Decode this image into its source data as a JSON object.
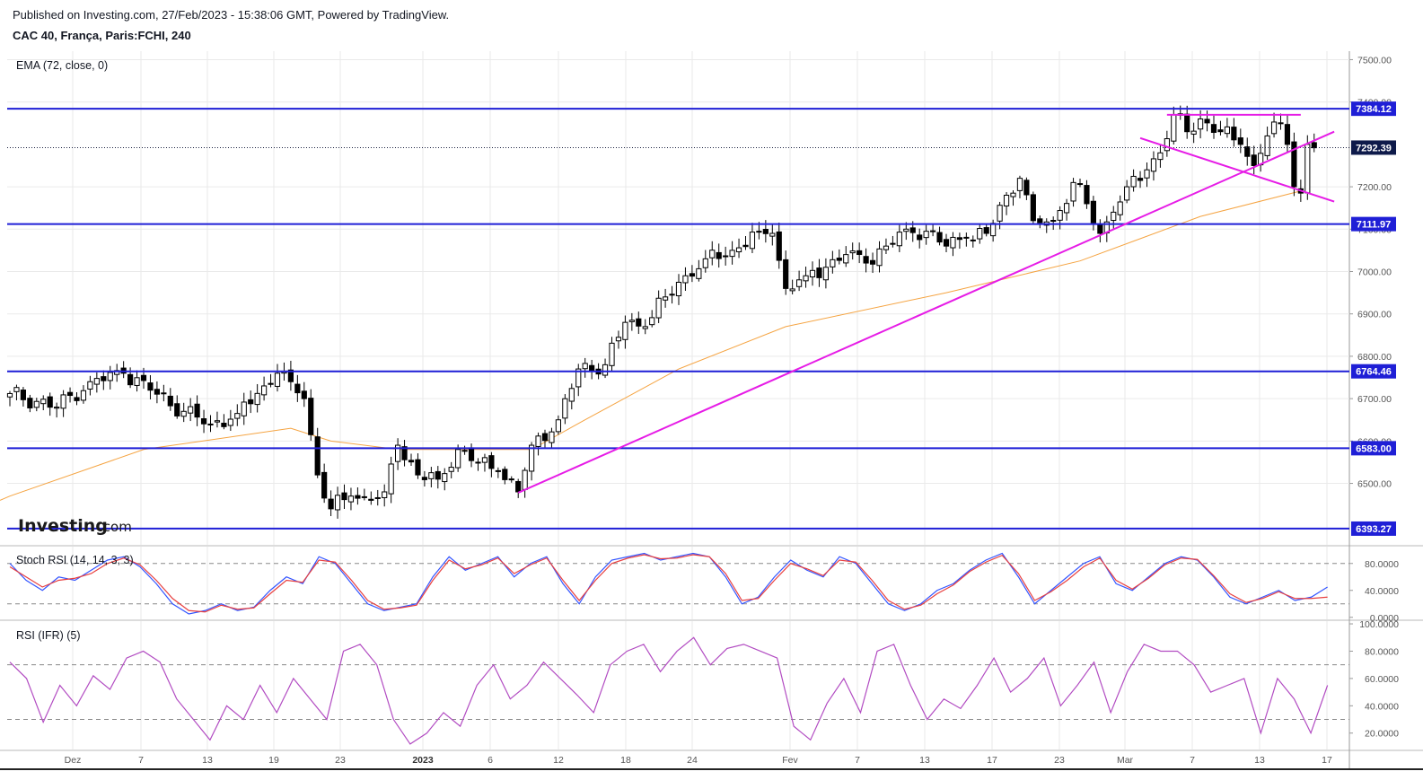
{
  "header": {
    "line1": "Published on Investing.com, 27/Feb/2023 - 15:38:06 GMT, Powered by TradingView.",
    "line2": "CAC 40, França, Paris:FCHI, 240"
  },
  "logo": {
    "bold": "Investing",
    "suffix": ".com"
  },
  "chart_data": [
    {
      "type": "candlestick",
      "title": "CAC 40, França, Paris:FCHI, 240",
      "indicator_label": "EMA (72, close, 0)",
      "ylim": [
        6355,
        7520
      ],
      "y_ticks": [
        {
          "value": 6500,
          "label": "6500.00"
        },
        {
          "value": 6600,
          "label": "6600.00"
        },
        {
          "value": 6700,
          "label": "6700.00"
        },
        {
          "value": 6800,
          "label": "6800.00"
        },
        {
          "value": 6900,
          "label": "6900.00"
        },
        {
          "value": 7000,
          "label": "7000.00"
        },
        {
          "value": 7100,
          "label": "7100.00"
        },
        {
          "value": 7200,
          "label": "7200.00"
        },
        {
          "value": 7400,
          "label": "7400.00"
        },
        {
          "value": 7500,
          "label": "7500.00"
        }
      ],
      "x_ticks": [
        {
          "label": "Dez",
          "bold": false
        },
        {
          "label": "7",
          "bold": false
        },
        {
          "label": "13",
          "bold": false
        },
        {
          "label": "19",
          "bold": false
        },
        {
          "label": "23",
          "bold": false
        },
        {
          "label": "2023",
          "bold": true
        },
        {
          "label": "6",
          "bold": false
        },
        {
          "label": "12",
          "bold": false
        },
        {
          "label": "18",
          "bold": false
        },
        {
          "label": "24",
          "bold": false
        },
        {
          "label": "Fev",
          "bold": false
        },
        {
          "label": "7",
          "bold": false
        },
        {
          "label": "13",
          "bold": false
        },
        {
          "label": "17",
          "bold": false
        },
        {
          "label": "23",
          "bold": false
        },
        {
          "label": "Mar",
          "bold": false
        },
        {
          "label": "7",
          "bold": false
        },
        {
          "label": "13",
          "bold": false
        },
        {
          "label": "17",
          "bold": false
        }
      ],
      "anchor_candles": [
        {
          "i": 0,
          "c": 6712
        },
        {
          "i": 7,
          "c": 6680
        },
        {
          "i": 12,
          "c": 6740
        },
        {
          "i": 17,
          "c": 6760
        },
        {
          "i": 21,
          "c": 6720
        },
        {
          "i": 26,
          "c": 6670
        },
        {
          "i": 30,
          "c": 6640
        },
        {
          "i": 34,
          "c": 6665
        },
        {
          "i": 38,
          "c": 6730
        },
        {
          "i": 40,
          "c": 6760
        },
        {
          "i": 42,
          "c": 6740
        },
        {
          "i": 44,
          "c": 6700
        },
        {
          "i": 46,
          "c": 6520
        },
        {
          "i": 48,
          "c": 6440
        },
        {
          "i": 51,
          "c": 6470
        },
        {
          "i": 54,
          "c": 6460
        },
        {
          "i": 56,
          "c": 6480
        },
        {
          "i": 58,
          "c": 6590
        },
        {
          "i": 61,
          "c": 6520
        },
        {
          "i": 64,
          "c": 6510
        },
        {
          "i": 67,
          "c": 6580
        },
        {
          "i": 70,
          "c": 6550
        },
        {
          "i": 73,
          "c": 6530
        },
        {
          "i": 76,
          "c": 6480
        },
        {
          "i": 78,
          "c": 6590
        },
        {
          "i": 82,
          "c": 6650
        },
        {
          "i": 85,
          "c": 6770
        },
        {
          "i": 89,
          "c": 6780
        },
        {
          "i": 92,
          "c": 6880
        },
        {
          "i": 95,
          "c": 6870
        },
        {
          "i": 98,
          "c": 6940
        },
        {
          "i": 101,
          "c": 6990
        },
        {
          "i": 104,
          "c": 7030
        },
        {
          "i": 108,
          "c": 7050
        },
        {
          "i": 112,
          "c": 7095
        },
        {
          "i": 114,
          "c": 7090
        },
        {
          "i": 116,
          "c": 6960
        },
        {
          "i": 119,
          "c": 6990
        },
        {
          "i": 122,
          "c": 7010
        },
        {
          "i": 125,
          "c": 7040
        },
        {
          "i": 128,
          "c": 7020
        },
        {
          "i": 131,
          "c": 7060
        },
        {
          "i": 134,
          "c": 7100
        },
        {
          "i": 137,
          "c": 7095
        },
        {
          "i": 140,
          "c": 7060
        },
        {
          "i": 143,
          "c": 7080
        },
        {
          "i": 146,
          "c": 7090
        },
        {
          "i": 149,
          "c": 7180
        },
        {
          "i": 151,
          "c": 7220
        },
        {
          "i": 153,
          "c": 7120
        },
        {
          "i": 156,
          "c": 7120
        },
        {
          "i": 159,
          "c": 7210
        },
        {
          "i": 161,
          "c": 7160
        },
        {
          "i": 163,
          "c": 7090
        },
        {
          "i": 165,
          "c": 7140
        },
        {
          "i": 167,
          "c": 7200
        },
        {
          "i": 170,
          "c": 7240
        },
        {
          "i": 172,
          "c": 7280
        },
        {
          "i": 174,
          "c": 7370
        },
        {
          "i": 176,
          "c": 7330
        },
        {
          "i": 178,
          "c": 7360
        },
        {
          "i": 181,
          "c": 7330
        },
        {
          "i": 184,
          "c": 7300
        },
        {
          "i": 186,
          "c": 7250
        },
        {
          "i": 188,
          "c": 7320
        },
        {
          "i": 190,
          "c": 7350
        },
        {
          "i": 191,
          "c": 7300
        },
        {
          "i": 192,
          "c": 7200
        },
        {
          "i": 193,
          "c": 7185
        },
        {
          "i": 194,
          "c": 7300
        },
        {
          "i": 195,
          "c": 7292
        }
      ],
      "candle_count": 196,
      "ema": [
        {
          "i": 0,
          "v": 6470
        },
        {
          "i": 20,
          "v": 6580
        },
        {
          "i": 42,
          "v": 6630
        },
        {
          "i": 48,
          "v": 6600
        },
        {
          "i": 58,
          "v": 6580
        },
        {
          "i": 78,
          "v": 6580
        },
        {
          "i": 86,
          "v": 6650
        },
        {
          "i": 100,
          "v": 6770
        },
        {
          "i": 116,
          "v": 6870
        },
        {
          "i": 140,
          "v": 6950
        },
        {
          "i": 160,
          "v": 7025
        },
        {
          "i": 178,
          "v": 7130
        },
        {
          "i": 193,
          "v": 7190
        }
      ],
      "horizontal_levels": [
        {
          "value": 7384.12,
          "label": "7384.12"
        },
        {
          "value": 7111.97,
          "label": "7111.97"
        },
        {
          "value": 6764.46,
          "label": "6764.46"
        },
        {
          "value": 6583.0,
          "label": "6583.00"
        },
        {
          "value": 6393.27,
          "label": "6393.27"
        }
      ],
      "current_price": {
        "value": 7292.39,
        "label": "7292.39"
      },
      "trendlines": [
        {
          "from": {
            "i": 76,
            "v": 6478
          },
          "to": {
            "i": 198,
            "v": 7330
          }
        },
        {
          "from": {
            "i": 169,
            "v": 7315
          },
          "to": {
            "i": 198,
            "v": 7165
          }
        },
        {
          "from": {
            "i": 173,
            "v": 7370
          },
          "to": {
            "i": 193,
            "v": 7370
          }
        }
      ],
      "colors": {
        "levels": "#1f1fd6",
        "trendlines": "#e61ce6",
        "ema": "#f5a442",
        "up": "#ffffff",
        "down": "#000000"
      }
    },
    {
      "type": "line",
      "title": "Stoch RSI (14, 14, 3, 3)",
      "ylim": [
        -3,
        105
      ],
      "y_ticks": [
        {
          "value": 0,
          "label": "0.0000"
        },
        {
          "value": 40,
          "label": "40.0000"
        },
        {
          "value": 80,
          "label": "80.0000"
        }
      ],
      "bands": [
        20,
        80
      ],
      "series": [
        {
          "color": "#3355ff",
          "values": [
            80,
            55,
            40,
            60,
            55,
            70,
            85,
            90,
            75,
            50,
            20,
            5,
            10,
            20,
            10,
            15,
            40,
            60,
            50,
            90,
            80,
            50,
            20,
            10,
            15,
            20,
            60,
            90,
            70,
            80,
            90,
            60,
            80,
            90,
            50,
            20,
            60,
            85,
            90,
            95,
            85,
            90,
            95,
            90,
            60,
            20,
            30,
            60,
            85,
            70,
            60,
            90,
            80,
            50,
            20,
            10,
            20,
            40,
            50,
            70,
            85,
            95,
            60,
            20,
            40,
            60,
            80,
            90,
            50,
            40,
            60,
            80,
            90,
            85,
            60,
            30,
            20,
            30,
            40,
            25,
            30,
            45
          ]
        },
        {
          "color": "#e84040",
          "values": [
            75,
            60,
            45,
            55,
            58,
            65,
            80,
            88,
            78,
            55,
            28,
            10,
            8,
            18,
            12,
            14,
            35,
            55,
            52,
            85,
            82,
            55,
            25,
            12,
            14,
            18,
            55,
            85,
            72,
            78,
            88,
            65,
            78,
            88,
            55,
            25,
            55,
            80,
            88,
            93,
            87,
            88,
            93,
            90,
            65,
            25,
            28,
            55,
            80,
            72,
            62,
            85,
            82,
            55,
            25,
            12,
            18,
            35,
            48,
            68,
            82,
            92,
            65,
            25,
            38,
            55,
            75,
            88,
            55,
            42,
            58,
            78,
            88,
            86,
            62,
            35,
            22,
            28,
            38,
            28,
            28,
            30
          ]
        }
      ]
    },
    {
      "type": "line",
      "title": "RSI (IFR) (5)",
      "ylim": [
        8,
        102
      ],
      "y_ticks": [
        {
          "value": 20,
          "label": "20.0000"
        },
        {
          "value": 40,
          "label": "40.0000"
        },
        {
          "value": 60,
          "label": "60.0000"
        },
        {
          "value": 80,
          "label": "80.0000"
        },
        {
          "value": 100,
          "label": "100.0000"
        }
      ],
      "bands": [
        30,
        70
      ],
      "series": [
        {
          "color": "#b24cc2",
          "values": [
            72,
            60,
            28,
            55,
            40,
            62,
            52,
            75,
            80,
            72,
            45,
            30,
            15,
            40,
            30,
            55,
            35,
            60,
            45,
            30,
            80,
            85,
            70,
            30,
            12,
            20,
            35,
            25,
            55,
            70,
            45,
            55,
            72,
            60,
            48,
            35,
            70,
            80,
            85,
            65,
            80,
            90,
            70,
            82,
            85,
            80,
            75,
            25,
            15,
            42,
            60,
            35,
            80,
            85,
            55,
            30,
            45,
            38,
            55,
            75,
            50,
            60,
            75,
            40,
            55,
            72,
            35,
            65,
            85,
            80,
            80,
            70,
            50,
            55,
            60,
            20,
            60,
            45,
            20,
            55
          ]
        }
      ]
    }
  ]
}
